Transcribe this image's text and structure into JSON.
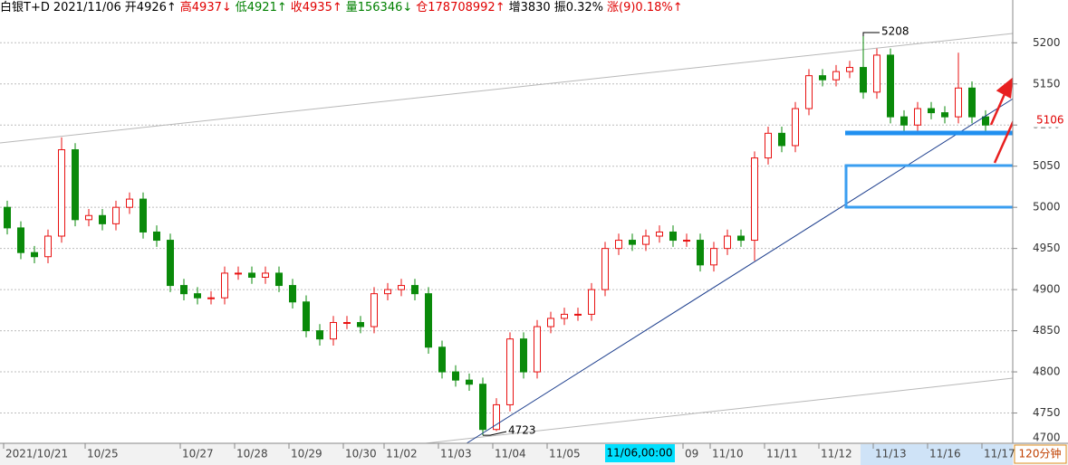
{
  "chart_data": {
    "type": "candlestick",
    "header": [
      {
        "text": "白银T+D",
        "color": "#000000"
      },
      {
        "text": "2021/11/06",
        "color": "#000000"
      },
      {
        "text": "开4926↑",
        "color": "#000000"
      },
      {
        "text": "高4937↓",
        "color": "#e00000"
      },
      {
        "text": "低4921↑",
        "color": "#008000"
      },
      {
        "text": "收4935↑",
        "color": "#e00000"
      },
      {
        "text": "量156346↓",
        "color": "#008000"
      },
      {
        "text": "仓178708992↑",
        "color": "#e00000"
      },
      {
        "text": "增3830",
        "color": "#000000"
      },
      {
        "text": "振0.32%",
        "color": "#000000"
      },
      {
        "text": "涨(9)0.18%↑",
        "color": "#e00000"
      }
    ],
    "categories": [
      "2021/10/21",
      null,
      null,
      null,
      null,
      null,
      "10/25",
      null,
      null,
      null,
      null,
      null,
      null,
      "10/27",
      null,
      null,
      null,
      "10/28",
      null,
      null,
      null,
      "10/29",
      null,
      null,
      null,
      "10/30",
      null,
      null,
      "11/02",
      null,
      null,
      null,
      "11/03",
      null,
      null,
      null,
      "11/04",
      null,
      null,
      null,
      "11/05",
      null,
      null,
      null,
      null,
      null,
      null,
      null,
      null,
      null,
      "09",
      null,
      "11/10",
      null,
      null,
      null,
      "11/11",
      null,
      null,
      null,
      "11/12",
      null,
      null,
      null,
      "11/13",
      null,
      null,
      null,
      "11/16",
      null,
      null,
      null,
      "11/17"
    ],
    "open": [
      5000,
      4975,
      4945,
      4940,
      4965,
      5070,
      4985,
      4990,
      4980,
      5000,
      5010,
      4970,
      4960,
      4905,
      4895,
      4890,
      4890,
      4920,
      4920,
      4915,
      4920,
      4905,
      4885,
      4850,
      4840,
      4860,
      4860,
      4855,
      4895,
      4900,
      4905,
      4895,
      4830,
      4800,
      4790,
      4785,
      4730,
      4760,
      4840,
      4800,
      4855,
      4865,
      4870,
      4870,
      4900,
      4950,
      4960,
      4955,
      4965,
      4970,
      4960,
      4960,
      4930,
      4950,
      4965,
      4960,
      5060,
      5090,
      5075,
      5120,
      5160,
      5155,
      5165,
      5170,
      5140,
      5185,
      5110,
      5100,
      5120,
      5115,
      5110,
      5145,
      5110
    ],
    "high": [
      5008,
      4983,
      4953,
      4973,
      5085,
      5078,
      4998,
      4998,
      5008,
      5018,
      5018,
      4978,
      4968,
      4913,
      4903,
      4898,
      4928,
      4928,
      4928,
      4928,
      4928,
      4913,
      4893,
      4858,
      4868,
      4868,
      4868,
      4903,
      4908,
      4913,
      4913,
      4903,
      4838,
      4808,
      4798,
      4793,
      4768,
      4848,
      4848,
      4863,
      4873,
      4878,
      4878,
      4908,
      4958,
      4968,
      4968,
      4973,
      4978,
      4978,
      4968,
      4968,
      4958,
      4973,
      4973,
      5068,
      5098,
      5098,
      5128,
      5168,
      5168,
      5173,
      5178,
      5208,
      5193,
      5193,
      5118,
      5128,
      5128,
      5123,
      5188,
      5153,
      5118
    ],
    "low": [
      4967,
      4937,
      4932,
      4932,
      4957,
      4977,
      4977,
      4972,
      4972,
      4992,
      4962,
      4952,
      4897,
      4887,
      4882,
      4882,
      4882,
      4912,
      4907,
      4907,
      4897,
      4877,
      4842,
      4832,
      4832,
      4852,
      4847,
      4847,
      4887,
      4892,
      4887,
      4822,
      4792,
      4782,
      4777,
      4723,
      4728,
      4752,
      4792,
      4792,
      4847,
      4857,
      4862,
      4862,
      4892,
      4942,
      4947,
      4947,
      4957,
      4952,
      4952,
      4922,
      4922,
      4942,
      4952,
      4935,
      5052,
      5067,
      5067,
      5112,
      5147,
      5147,
      5157,
      5132,
      5132,
      5102,
      5092,
      5092,
      5107,
      5102,
      5102,
      5102,
      5092
    ],
    "close": [
      4975,
      4945,
      4940,
      4965,
      5070,
      4985,
      4990,
      4980,
      5000,
      5010,
      4970,
      4960,
      4905,
      4895,
      4890,
      4890,
      4920,
      4920,
      4915,
      4920,
      4905,
      4885,
      4850,
      4840,
      4860,
      4860,
      4855,
      4895,
      4900,
      4905,
      4895,
      4830,
      4800,
      4790,
      4785,
      4730,
      4760,
      4840,
      4800,
      4855,
      4865,
      4870,
      4870,
      4900,
      4950,
      4960,
      4955,
      4965,
      4970,
      4960,
      4960,
      4930,
      4950,
      4965,
      4960,
      5060,
      5090,
      5075,
      5120,
      5160,
      5155,
      5165,
      5170,
      5140,
      5185,
      5110,
      5100,
      5120,
      5115,
      5110,
      5145,
      5110,
      5100
    ],
    "up_color": "#e81010",
    "down_color": "#0a8a0a",
    "ylim": [
      4700,
      5252
    ],
    "yticks": [
      4700,
      4750,
      4800,
      4850,
      4900,
      4950,
      5000,
      5050,
      5100,
      5150,
      5200
    ],
    "grid": true,
    "high_label": 5208,
    "low_label": 4723,
    "last_price": 5106,
    "cursor_label": "11/06,00:00",
    "period_label": "120分钟"
  }
}
